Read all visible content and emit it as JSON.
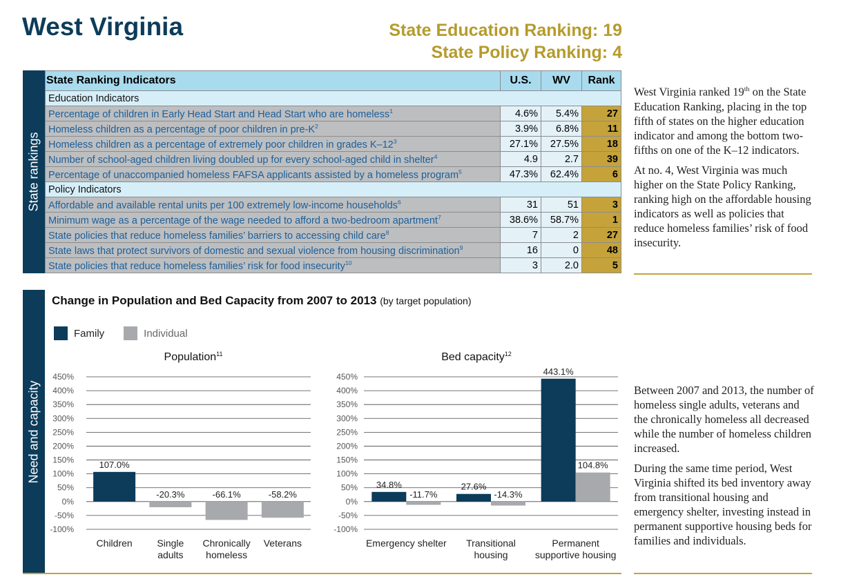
{
  "header": {
    "title": "West Virginia",
    "rankings": [
      {
        "label": "State Education Ranking:",
        "value": "19"
      },
      {
        "label": "State Policy Ranking:",
        "value": "4"
      }
    ]
  },
  "table": {
    "side_label": "State rankings",
    "columns": [
      "State Ranking Indicators",
      "U.S.",
      "WV",
      "Rank"
    ],
    "sections": [
      {
        "title": "Education Indicators",
        "rows": [
          {
            "label": "Percentage of children in Early Head Start and Head Start who are homeless",
            "note": "1",
            "cells": [
              "4.6%",
              "5.4%",
              "27"
            ]
          },
          {
            "label": "Homeless children as a percentage of poor children in pre-K",
            "note": "2",
            "cells": [
              "3.9%",
              "6.8%",
              "11"
            ]
          },
          {
            "label": "Homeless children as a percentage of extremely poor children in grades K–12",
            "note": "3",
            "cells": [
              "27.1%",
              "27.5%",
              "18"
            ]
          },
          {
            "label": "Number of school-aged children living doubled up for every school-aged child in shelter",
            "note": "4",
            "cells": [
              "4.9",
              "2.7",
              "39"
            ]
          },
          {
            "label": "Percentage of unaccompanied homeless FAFSA applicants assisted by a homeless program",
            "note": "5",
            "cells": [
              "47.3%",
              "62.4%",
              "6"
            ]
          }
        ]
      },
      {
        "title": "Policy Indicators",
        "rows": [
          {
            "label": "Affordable and available rental units per 100 extremely low-income households",
            "note": "6",
            "cells": [
              "31",
              "51",
              "3"
            ]
          },
          {
            "label": "Minimum wage as a percentage of the wage needed to afford a two-bedroom apartment",
            "note": "7",
            "cells": [
              "38.6%",
              "58.7%",
              "1"
            ]
          },
          {
            "label": "State policies that reduce homeless families’ barriers to accessing child care",
            "note": "8",
            "cells": [
              "7",
              "2",
              "27"
            ]
          },
          {
            "label": "State laws that protect survivors of domestic and sexual violence from housing discrimination",
            "note": "9",
            "cells": [
              "16",
              "0",
              "48"
            ]
          },
          {
            "label": "State policies that reduce homeless families’ risk for food insecurity",
            "note": "10",
            "cells": [
              "3",
              "2.0",
              "5"
            ]
          }
        ]
      }
    ]
  },
  "sidebar_top": [
    [
      {
        "text": "West Virginia ranked 19"
      },
      {
        "sup": "th"
      },
      {
        "text": " on the State Education Ranking, placing in the top fifth of states on the higher education indicator and among the bottom two-fifths on one of the K–12 indicators."
      }
    ],
    [
      {
        "text": "At no. 4, West Virginia was much higher on the State Policy Rank­ing, ranking high on the affordable housing indicators as well as pol­icies that reduce homeless families’ risk of food insecurity."
      }
    ]
  ],
  "chart_section": {
    "side_label": "Need and capacity",
    "title": "Change in Population and Bed Capacity from 2007 to 2013",
    "subtitle": "(by target population)"
  },
  "chart_data": [
    {
      "type": "bar",
      "title": "Population",
      "title_note": "11",
      "categories": [
        "Children",
        "Single adults",
        "Chronically homeless",
        "Veterans"
      ],
      "series": [
        {
          "name": "Family",
          "color": "#0c3c5a",
          "values": [
            107.0,
            null,
            null,
            null
          ],
          "value_labels": [
            "107.0%",
            null,
            null,
            null
          ]
        },
        {
          "name": "Individual",
          "color": "#a7a9ac",
          "values": [
            null,
            -20.3,
            -66.1,
            -58.2
          ],
          "value_labels": [
            null,
            "-20.3%",
            "-66.1%",
            "-58.2%"
          ]
        }
      ],
      "ylim": [
        -100,
        450
      ],
      "yticks": [
        {
          "value": -100,
          "label": "-100%"
        },
        {
          "value": -50,
          "label": "-50%"
        },
        {
          "value": 0,
          "label": "0%"
        },
        {
          "value": 50,
          "label": "50%"
        },
        {
          "value": 100,
          "label": "100%"
        },
        {
          "value": 150,
          "label": "150%"
        },
        {
          "value": 200,
          "label": "200%"
        },
        {
          "value": 250,
          "label": "250%"
        },
        {
          "value": 300,
          "label": "300%"
        },
        {
          "value": 350,
          "label": "350%"
        },
        {
          "value": 400,
          "label": "400%"
        },
        {
          "value": 450,
          "label": "450%"
        }
      ],
      "grid": true
    },
    {
      "type": "bar",
      "title": "Bed capacity",
      "title_note": "12",
      "categories": [
        "Emergency shelter",
        "Transitional housing",
        "Permanent supportive housing"
      ],
      "series": [
        {
          "color": "#0c3c5a",
          "values": [
            34.8,
            27.6,
            443.1
          ],
          "value_labels": [
            "34.8%",
            "27.6%",
            "443.1%"
          ]
        },
        {
          "color": "#a7a9ac",
          "values": [
            -11.7,
            -14.3,
            104.8
          ],
          "value_labels": [
            "-11.7%",
            "-14.3%",
            "104.8%"
          ]
        }
      ],
      "ylim": [
        -100,
        450
      ],
      "yticks": [
        {
          "value": -100,
          "label": "-100%"
        },
        {
          "value": -50,
          "label": "-50%"
        },
        {
          "value": 0,
          "label": "0%"
        },
        {
          "value": 50,
          "label": "50%"
        },
        {
          "value": 100,
          "label": "100%"
        },
        {
          "value": 150,
          "label": "150%"
        },
        {
          "value": 200,
          "label": "200%"
        },
        {
          "value": 250,
          "label": "250%"
        },
        {
          "value": 300,
          "label": "300%"
        },
        {
          "value": 350,
          "label": "350%"
        },
        {
          "value": 400,
          "label": "400%"
        },
        {
          "value": 450,
          "label": "450%"
        }
      ],
      "grid": true
    }
  ],
  "sidebar_bottom": [
    [
      {
        "text": "Between 2007 and 2013, the number of homeless single adults, veterans and the chronically home­less all decreased while the number of homeless children increased."
      }
    ],
    [
      {
        "text": "During the same time period, West Virginia shifted its bed inventory away from transitional housing and emergency shelter, investing instead in permanent supportive housing beds for families and individuals."
      }
    ]
  ]
}
